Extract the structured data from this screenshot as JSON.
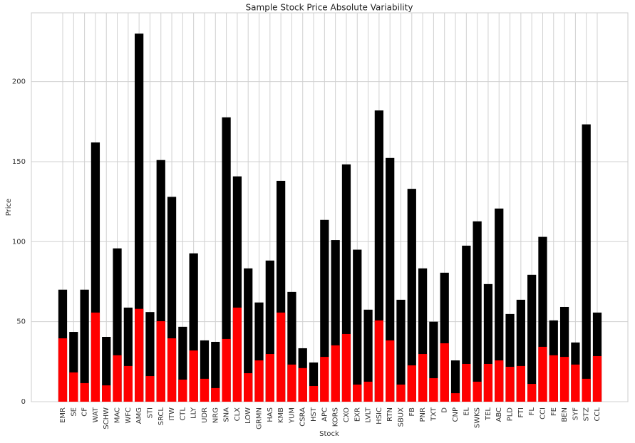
{
  "chart_data": {
    "type": "bar",
    "title": "Sample Stock Price Absolute Variability",
    "x_label": "Stock",
    "y_label": "Price",
    "categories": [
      "EMR",
      "SE",
      "CF",
      "WAT",
      "SCHW",
      "MAC",
      "WFC",
      "AMG",
      "STI",
      "SRCL",
      "ITW",
      "CTL",
      "LLY",
      "UDR",
      "NRG",
      "SNA",
      "CLX",
      "LOW",
      "GRMN",
      "HAS",
      "KMB",
      "YUM",
      "CSRA",
      "HST",
      "APC",
      "KORS",
      "CXO",
      "EXR",
      "LVLT",
      "HSIC",
      "RTN",
      "SBUX",
      "FB",
      "PNR",
      "TXT",
      "D",
      "CNP",
      "EL",
      "SWKS",
      "TEL",
      "ABC",
      "PLD",
      "FTI",
      "FL",
      "CCI",
      "FE",
      "BEN",
      "SYF",
      "STZ",
      "CCL"
    ],
    "series": [
      {
        "color": "#000000",
        "values": [
          70,
          43.6,
          70,
          162,
          40.5,
          95.8,
          58.8,
          230,
          56,
          151,
          128,
          46.8,
          92.7,
          38.3,
          37.4,
          177.7,
          140.8,
          83.3,
          62,
          88.2,
          138,
          68.6,
          33.4,
          24.5,
          113.6,
          101,
          148.3,
          95,
          57.5,
          182,
          152.3,
          63.7,
          133,
          83.3,
          50,
          80.6,
          25.8,
          97.5,
          112.7,
          73.5,
          120.7,
          54.8,
          63.7,
          79.3,
          103,
          50.8,
          59.2,
          37,
          173.3,
          55.7
        ]
      },
      {
        "color": "#ff0000",
        "values": [
          39.6,
          18.3,
          11.6,
          55.7,
          10.2,
          29,
          22.3,
          58,
          16,
          50.3,
          39.6,
          13.8,
          32,
          14.3,
          8.5,
          39.2,
          58.8,
          17.8,
          25.8,
          29.8,
          55.7,
          23.2,
          21,
          9.8,
          28,
          35.2,
          42.3,
          10.7,
          12.5,
          50.8,
          38.3,
          10.7,
          22.7,
          29.8,
          14.7,
          36.5,
          5.3,
          23.6,
          12.5,
          23.6,
          25.8,
          21.8,
          22.3,
          11.1,
          34.3,
          29,
          28,
          23.2,
          14.3,
          28.5
        ]
      }
    ],
    "ylim": [
      0,
      243
    ],
    "yticks": [
      0,
      50,
      100,
      150,
      200
    ],
    "grid": true
  }
}
